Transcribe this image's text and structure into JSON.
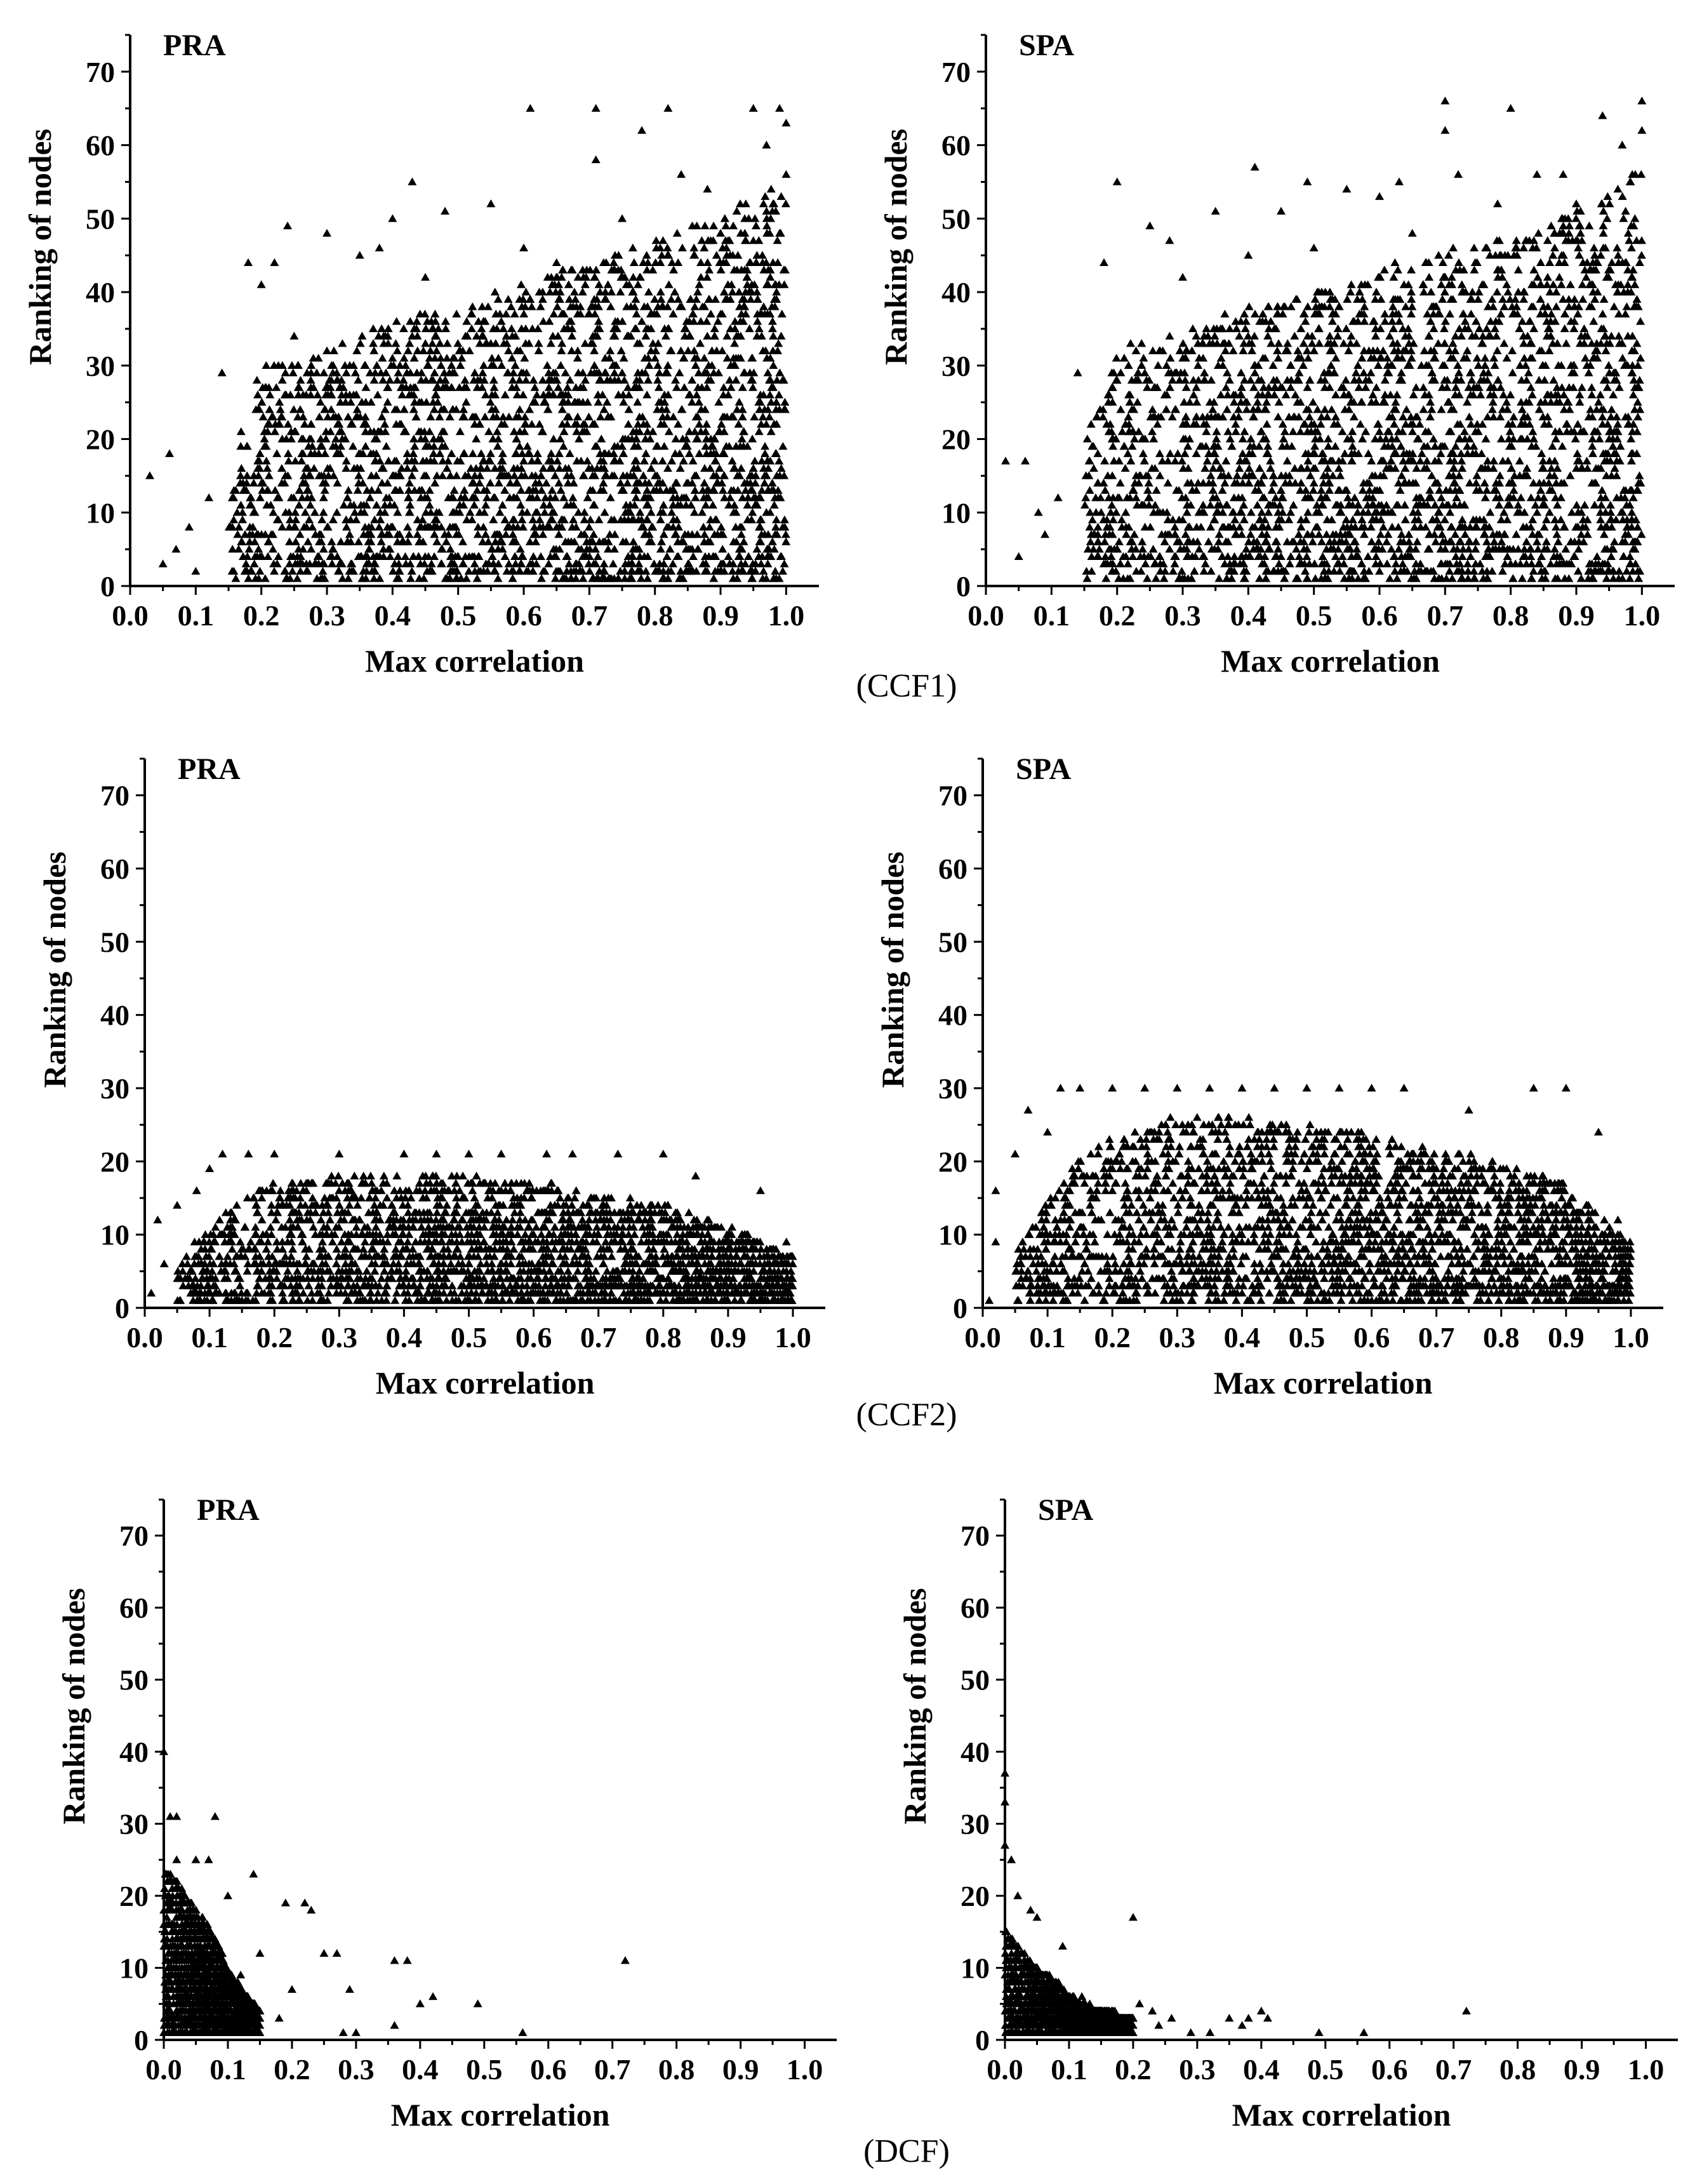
{
  "groups": [
    {
      "caption": "(CCF1)"
    },
    {
      "caption": "(CCF2)"
    },
    {
      "caption": "(DCF)"
    }
  ],
  "marker": {
    "shape": "filled-triangle",
    "color": "#000000"
  },
  "chart_data": [
    {
      "type": "scatter",
      "group": "(CCF1)",
      "title": "PRA",
      "xlabel": "Max correlation",
      "ylabel": "Ranking of nodes",
      "xlim": [
        0,
        1.05
      ],
      "ylim": [
        0,
        75
      ],
      "xticks": [
        0.0,
        0.1,
        0.2,
        0.3,
        0.4,
        0.5,
        0.6,
        0.7,
        0.8,
        0.9,
        1.0
      ],
      "xtick_labels": [
        "0.0",
        "0.1",
        "0.2",
        "0.3",
        "0.4",
        "0.5",
        "0.6",
        "0.7",
        "0.8",
        "0.9",
        "1.0"
      ],
      "yticks": [
        0,
        10,
        20,
        30,
        40,
        50,
        60,
        70
      ],
      "ytick_labels": [
        "0",
        "10",
        "20",
        "30",
        "40",
        "50",
        "60",
        "70"
      ],
      "grid": false,
      "points": [
        [
          0.03,
          15
        ],
        [
          0.06,
          18
        ],
        [
          0.05,
          3
        ],
        [
          0.07,
          5
        ],
        [
          0.09,
          8
        ],
        [
          0.1,
          2
        ],
        [
          0.12,
          12
        ],
        [
          0.14,
          29
        ],
        [
          0.18,
          44
        ],
        [
          0.2,
          41
        ],
        [
          0.24,
          49
        ],
        [
          0.22,
          44
        ],
        [
          0.3,
          48
        ],
        [
          0.35,
          45
        ],
        [
          0.38,
          46
        ],
        [
          0.4,
          50
        ],
        [
          0.43,
          55
        ],
        [
          0.48,
          51
        ],
        [
          0.55,
          52
        ],
        [
          0.61,
          65
        ],
        [
          0.71,
          65
        ],
        [
          0.71,
          58
        ],
        [
          0.78,
          62
        ],
        [
          0.82,
          65
        ],
        [
          0.84,
          56
        ],
        [
          0.88,
          54
        ],
        [
          0.95,
          65
        ],
        [
          0.97,
          60
        ],
        [
          0.99,
          65
        ],
        [
          1.0,
          63
        ],
        [
          1.0,
          56
        ],
        [
          0.99,
          48
        ],
        [
          0.25,
          34
        ],
        [
          0.3,
          32
        ],
        [
          0.45,
          42
        ],
        [
          0.6,
          46
        ],
        [
          0.65,
          44
        ],
        [
          0.75,
          50
        ],
        [
          0.9,
          48
        ],
        [
          0.93,
          52
        ]
      ],
      "density_envelope": {
        "x": [
          0.15,
          0.2,
          0.3,
          0.4,
          0.5,
          0.6,
          0.7,
          0.8,
          0.9,
          1.0
        ],
        "y_max": [
          18,
          30,
          32,
          36,
          38,
          41,
          44,
          47,
          50,
          56
        ]
      }
    },
    {
      "type": "scatter",
      "group": "(CCF1)",
      "title": "SPA",
      "xlabel": "Max correlation",
      "ylabel": "Ranking of nodes",
      "xlim": [
        0,
        1.05
      ],
      "ylim": [
        0,
        75
      ],
      "xticks": [
        0.0,
        0.1,
        0.2,
        0.3,
        0.4,
        0.5,
        0.6,
        0.7,
        0.8,
        0.9,
        1.0
      ],
      "xtick_labels": [
        "0.0",
        "0.1",
        "0.2",
        "0.3",
        "0.4",
        "0.5",
        "0.6",
        "0.7",
        "0.8",
        "0.9",
        "1.0"
      ],
      "yticks": [
        0,
        10,
        20,
        30,
        40,
        50,
        60,
        70
      ],
      "ytick_labels": [
        "0",
        "10",
        "20",
        "30",
        "40",
        "50",
        "60",
        "70"
      ],
      "grid": false,
      "points": [
        [
          0.03,
          17
        ],
        [
          0.06,
          17
        ],
        [
          0.05,
          4
        ],
        [
          0.08,
          10
        ],
        [
          0.09,
          7
        ],
        [
          0.11,
          12
        ],
        [
          0.14,
          29
        ],
        [
          0.18,
          44
        ],
        [
          0.2,
          55
        ],
        [
          0.25,
          49
        ],
        [
          0.28,
          47
        ],
        [
          0.35,
          51
        ],
        [
          0.4,
          45
        ],
        [
          0.41,
          57
        ],
        [
          0.45,
          51
        ],
        [
          0.49,
          55
        ],
        [
          0.55,
          54
        ],
        [
          0.6,
          53
        ],
        [
          0.63,
          55
        ],
        [
          0.7,
          66
        ],
        [
          0.7,
          62
        ],
        [
          0.72,
          56
        ],
        [
          0.8,
          65
        ],
        [
          0.84,
          56
        ],
        [
          0.88,
          56
        ],
        [
          0.94,
          64
        ],
        [
          0.97,
          60
        ],
        [
          1.0,
          66
        ],
        [
          1.0,
          62
        ],
        [
          0.99,
          56
        ],
        [
          0.3,
          42
        ],
        [
          0.5,
          46
        ],
        [
          0.65,
          48
        ],
        [
          0.78,
          52
        ],
        [
          0.9,
          52
        ]
      ],
      "density_envelope": {
        "x": [
          0.15,
          0.2,
          0.3,
          0.4,
          0.5,
          0.6,
          0.7,
          0.8,
          0.9,
          1.0
        ],
        "y_max": [
          20,
          32,
          35,
          38,
          40,
          43,
          46,
          48,
          51,
          57
        ]
      }
    },
    {
      "type": "scatter",
      "group": "(CCF2)",
      "title": "PRA",
      "xlabel": "Max correlation",
      "ylabel": "Ranking of nodes",
      "xlim": [
        0,
        1.05
      ],
      "ylim": [
        0,
        75
      ],
      "xticks": [
        0.0,
        0.1,
        0.2,
        0.3,
        0.4,
        0.5,
        0.6,
        0.7,
        0.8,
        0.9,
        1.0
      ],
      "xtick_labels": [
        "0.0",
        "0.1",
        "0.2",
        "0.3",
        "0.4",
        "0.5",
        "0.6",
        "0.7",
        "0.8",
        "0.9",
        "1.0"
      ],
      "yticks": [
        0,
        10,
        20,
        30,
        40,
        50,
        60,
        70
      ],
      "ytick_labels": [
        "0",
        "10",
        "20",
        "30",
        "40",
        "50",
        "60",
        "70"
      ],
      "grid": false,
      "points": [
        [
          0.02,
          12
        ],
        [
          0.03,
          6
        ],
        [
          0.01,
          2
        ],
        [
          0.05,
          14
        ],
        [
          0.08,
          16
        ],
        [
          0.1,
          19
        ],
        [
          0.12,
          21
        ],
        [
          0.16,
          21
        ],
        [
          0.2,
          21
        ],
        [
          0.3,
          21
        ],
        [
          0.4,
          21
        ],
        [
          0.45,
          21
        ],
        [
          0.5,
          21
        ],
        [
          0.55,
          21
        ],
        [
          0.62,
          21
        ],
        [
          0.66,
          21
        ],
        [
          0.73,
          21
        ],
        [
          0.8,
          21
        ],
        [
          0.85,
          18
        ],
        [
          0.95,
          16
        ],
        [
          0.99,
          9
        ]
      ],
      "density_envelope": {
        "x": [
          0.05,
          0.1,
          0.15,
          0.2,
          0.3,
          0.4,
          0.5,
          0.6,
          0.7,
          0.8,
          0.9,
          1.0
        ],
        "y_max": [
          6,
          11,
          15,
          17,
          18,
          18,
          18,
          17,
          16,
          14,
          11,
          7
        ]
      }
    },
    {
      "type": "scatter",
      "group": "(CCF2)",
      "title": "SPA",
      "xlabel": "Max correlation",
      "ylabel": "Ranking of nodes",
      "xlim": [
        0,
        1.05
      ],
      "ylim": [
        0,
        75
      ],
      "xticks": [
        0.0,
        0.1,
        0.2,
        0.3,
        0.4,
        0.5,
        0.6,
        0.7,
        0.8,
        0.9,
        1.0
      ],
      "xtick_labels": [
        "0.0",
        "0.1",
        "0.2",
        "0.3",
        "0.4",
        "0.5",
        "0.6",
        "0.7",
        "0.8",
        "0.9",
        "1.0"
      ],
      "yticks": [
        0,
        10,
        20,
        30,
        40,
        50,
        60,
        70
      ],
      "ytick_labels": [
        "0",
        "10",
        "20",
        "30",
        "40",
        "50",
        "60",
        "70"
      ],
      "grid": false,
      "points": [
        [
          0.02,
          16
        ],
        [
          0.02,
          9
        ],
        [
          0.01,
          1
        ],
        [
          0.05,
          21
        ],
        [
          0.07,
          27
        ],
        [
          0.1,
          24
        ],
        [
          0.12,
          30
        ],
        [
          0.15,
          30
        ],
        [
          0.2,
          30
        ],
        [
          0.25,
          30
        ],
        [
          0.3,
          30
        ],
        [
          0.35,
          30
        ],
        [
          0.4,
          30
        ],
        [
          0.45,
          30
        ],
        [
          0.5,
          30
        ],
        [
          0.55,
          30
        ],
        [
          0.6,
          30
        ],
        [
          0.65,
          30
        ],
        [
          0.75,
          27
        ],
        [
          0.85,
          30
        ],
        [
          0.9,
          30
        ],
        [
          0.95,
          24
        ],
        [
          0.98,
          12
        ]
      ],
      "density_envelope": {
        "x": [
          0.05,
          0.1,
          0.15,
          0.2,
          0.3,
          0.4,
          0.5,
          0.6,
          0.7,
          0.8,
          0.9,
          1.0
        ],
        "y_max": [
          8,
          15,
          21,
          24,
          26,
          26,
          25,
          24,
          22,
          20,
          17,
          9
        ]
      }
    },
    {
      "type": "scatter",
      "group": "(DCF)",
      "title": "PRA",
      "xlabel": "Max correlation",
      "ylabel": "Ranking of nodes",
      "xlim": [
        0,
        1.05
      ],
      "ylim": [
        0,
        75
      ],
      "xticks": [
        0.0,
        0.1,
        0.2,
        0.3,
        0.4,
        0.5,
        0.6,
        0.7,
        0.8,
        0.9,
        1.0
      ],
      "xtick_labels": [
        "0.0",
        "0.1",
        "0.2",
        "0.3",
        "0.4",
        "0.5",
        "0.6",
        "0.7",
        "0.8",
        "0.9",
        "1.0"
      ],
      "yticks": [
        0,
        10,
        20,
        30,
        40,
        50,
        60,
        70
      ],
      "ytick_labels": [
        "0",
        "10",
        "20",
        "30",
        "40",
        "50",
        "60",
        "70"
      ],
      "grid": false,
      "points": [
        [
          0.0,
          40
        ],
        [
          0.01,
          31
        ],
        [
          0.02,
          31
        ],
        [
          0.08,
          31
        ],
        [
          0.02,
          25
        ],
        [
          0.05,
          25
        ],
        [
          0.07,
          25
        ],
        [
          0.14,
          23
        ],
        [
          0.1,
          20
        ],
        [
          0.19,
          19
        ],
        [
          0.22,
          19
        ],
        [
          0.23,
          18
        ],
        [
          0.25,
          12
        ],
        [
          0.27,
          12
        ],
        [
          0.29,
          7
        ],
        [
          0.36,
          11
        ],
        [
          0.38,
          11
        ],
        [
          0.42,
          6
        ],
        [
          0.4,
          5
        ],
        [
          0.49,
          5
        ],
        [
          0.56,
          1
        ],
        [
          0.72,
          11
        ],
        [
          0.28,
          1
        ],
        [
          0.36,
          2
        ],
        [
          0.15,
          12
        ],
        [
          0.12,
          9
        ],
        [
          0.2,
          7
        ],
        [
          0.18,
          3
        ],
        [
          0.3,
          1
        ]
      ],
      "density_envelope": {
        "x": [
          0.0,
          0.02,
          0.05,
          0.08,
          0.1,
          0.12,
          0.15
        ],
        "y_max": [
          24,
          22,
          18,
          14,
          10,
          7,
          4
        ]
      }
    },
    {
      "type": "scatter",
      "group": "(DCF)",
      "title": "SPA",
      "xlabel": "Max correlation",
      "ylabel": "Ranking of nodes",
      "xlim": [
        0,
        1.05
      ],
      "ylim": [
        0,
        75
      ],
      "xticks": [
        0.0,
        0.1,
        0.2,
        0.3,
        0.4,
        0.5,
        0.6,
        0.7,
        0.8,
        0.9,
        1.0
      ],
      "xtick_labels": [
        "0.0",
        "0.1",
        "0.2",
        "0.3",
        "0.4",
        "0.5",
        "0.6",
        "0.7",
        "0.8",
        "0.9",
        "1.0"
      ],
      "yticks": [
        0,
        10,
        20,
        30,
        40,
        50,
        60,
        70
      ],
      "ytick_labels": [
        "0",
        "10",
        "20",
        "30",
        "40",
        "50",
        "60",
        "70"
      ],
      "grid": false,
      "points": [
        [
          0.0,
          37
        ],
        [
          0.0,
          33
        ],
        [
          0.0,
          27
        ],
        [
          0.01,
          25
        ],
        [
          0.02,
          20
        ],
        [
          0.04,
          18
        ],
        [
          0.05,
          17
        ],
        [
          0.09,
          13
        ],
        [
          0.2,
          17
        ],
        [
          0.21,
          5
        ],
        [
          0.23,
          4
        ],
        [
          0.26,
          3
        ],
        [
          0.29,
          1
        ],
        [
          0.35,
          3
        ],
        [
          0.37,
          2
        ],
        [
          0.4,
          4
        ],
        [
          0.38,
          3
        ],
        [
          0.41,
          3
        ],
        [
          0.49,
          1
        ],
        [
          0.56,
          1
        ],
        [
          0.72,
          4
        ],
        [
          0.12,
          6
        ],
        [
          0.15,
          4
        ],
        [
          0.24,
          2
        ],
        [
          0.32,
          1
        ]
      ],
      "density_envelope": {
        "x": [
          0.0,
          0.02,
          0.05,
          0.08,
          0.1,
          0.12,
          0.15,
          0.2
        ],
        "y_max": [
          16,
          13,
          10,
          8,
          6,
          5,
          4,
          3
        ]
      }
    }
  ]
}
